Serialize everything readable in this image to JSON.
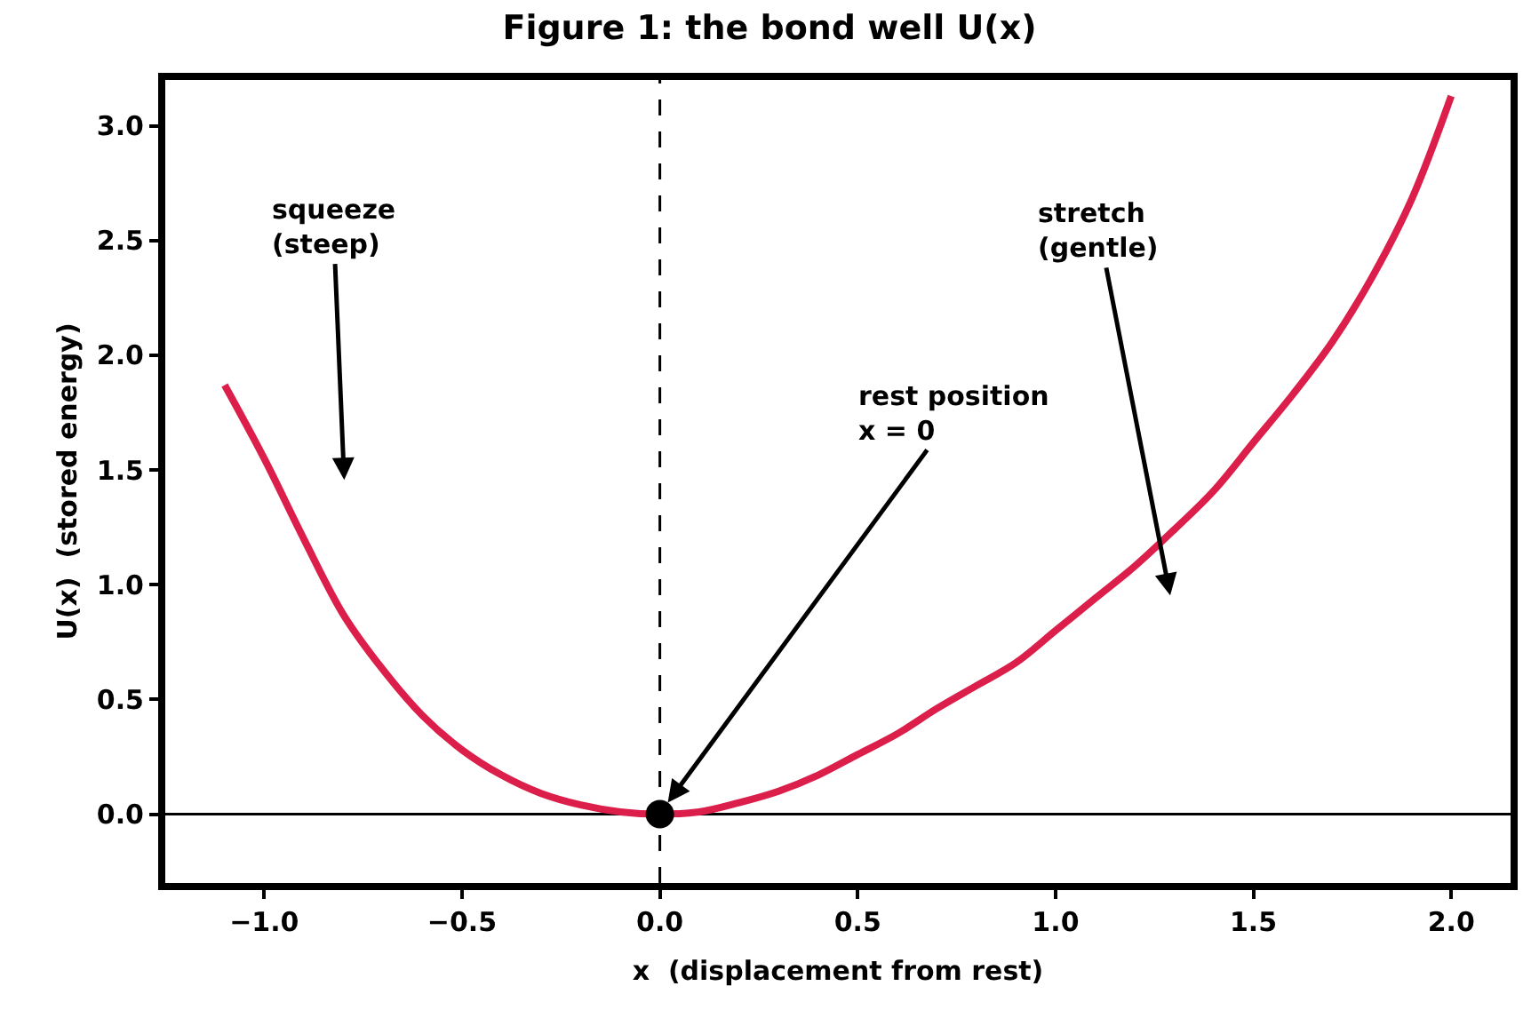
{
  "chart_data": {
    "type": "line",
    "title": "Figure 1: the bond well U(x)",
    "xlabel": "x  (displacement from rest)",
    "ylabel": "U(x)  (stored energy)",
    "series": [
      {
        "color": "#dc1e4b",
        "x": [
          -1.1,
          -1.0,
          -0.9,
          -0.8,
          -0.7,
          -0.6,
          -0.5,
          -0.4,
          -0.3,
          -0.2,
          -0.1,
          0.0,
          0.1,
          0.2,
          0.3,
          0.4,
          0.5,
          0.6,
          0.7,
          0.8,
          0.9,
          1.0,
          1.1,
          1.2,
          1.3,
          1.4,
          1.5,
          1.6,
          1.7,
          1.8,
          1.9,
          2.0
        ],
        "values": [
          1.87,
          1.55,
          1.2,
          0.87,
          0.63,
          0.43,
          0.28,
          0.17,
          0.09,
          0.04,
          0.01,
          0.0,
          0.01,
          0.05,
          0.1,
          0.17,
          0.26,
          0.35,
          0.46,
          0.56,
          0.66,
          0.8,
          0.94,
          1.08,
          1.24,
          1.41,
          1.62,
          1.83,
          2.06,
          2.34,
          2.68,
          3.13
        ]
      },
      {
        "type": "scatter",
        "color": "#000000",
        "marker": "circle",
        "x": [
          0.0
        ],
        "values": [
          0.0
        ]
      }
    ],
    "xlim": [
      -1.25,
      2.15
    ],
    "ylim": [
      -0.3,
      3.2
    ],
    "xticks": [
      {
        "value": -1.0,
        "label": "−1.0"
      },
      {
        "value": -0.5,
        "label": "−0.5"
      },
      {
        "value": 0.0,
        "label": "0.0"
      },
      {
        "value": 0.5,
        "label": "0.5"
      },
      {
        "value": 1.0,
        "label": "1.0"
      },
      {
        "value": 1.5,
        "label": "1.5"
      },
      {
        "value": 2.0,
        "label": "2.0"
      }
    ],
    "yticks": [
      {
        "value": 0.0,
        "label": "0.0"
      },
      {
        "value": 0.5,
        "label": "0.5"
      },
      {
        "value": 1.0,
        "label": "1.0"
      },
      {
        "value": 1.5,
        "label": "1.5"
      },
      {
        "value": 2.0,
        "label": "2.0"
      },
      {
        "value": 2.5,
        "label": "2.5"
      },
      {
        "value": 3.0,
        "label": "3.0"
      }
    ],
    "ref_lines": [
      {
        "axis": "y",
        "value": 0,
        "color": "#000000",
        "line_style": "solid"
      },
      {
        "axis": "x",
        "value": 0,
        "color": "#000000",
        "line_style": "dashed"
      }
    ],
    "annotations": [
      "squeeze\n(steep)",
      {
        "text": "rest position\nx = 0",
        "x": 0.02,
        "y": 0.05
      },
      "stretch\n(gentle)"
    ],
    "grid": false,
    "line_style": "solid"
  }
}
